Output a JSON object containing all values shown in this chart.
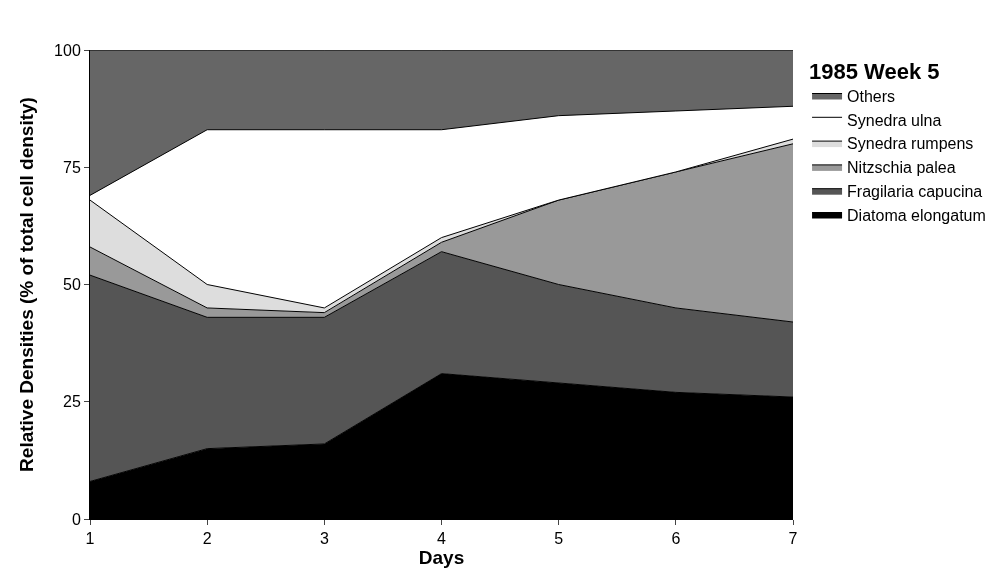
{
  "chart_data": {
    "type": "area",
    "stacked": true,
    "xlabel": "Days",
    "ylabel": "Relative Densities (% of total cell density)",
    "legend_title": "1985 Week 5",
    "x": [
      1,
      2,
      3,
      4,
      5,
      6,
      7
    ],
    "series": [
      {
        "name": "Diatoma elongatum",
        "color": "#000000",
        "values": [
          8,
          15,
          16,
          31,
          29,
          27,
          26
        ]
      },
      {
        "name": "Fragilaria capucina",
        "color": "#555555",
        "values": [
          44,
          28,
          27,
          26,
          21,
          18,
          16
        ]
      },
      {
        "name": "Nitzschia palea",
        "color": "#999999",
        "values": [
          6,
          2,
          1,
          2,
          18,
          29,
          38
        ]
      },
      {
        "name": "Synedra rumpens",
        "color": "#dddddd",
        "values": [
          10,
          5,
          1,
          1,
          0,
          0,
          1
        ]
      },
      {
        "name": "Synedra ulna",
        "color": "#ffffff",
        "values": [
          1,
          33,
          38,
          23,
          18,
          13,
          7
        ]
      },
      {
        "name": "Others",
        "color": "#666666",
        "values": [
          31,
          17,
          17,
          17,
          14,
          13,
          12
        ]
      }
    ],
    "xlim": [
      1,
      7
    ],
    "xticks": [
      1,
      2,
      3,
      4,
      5,
      6,
      7
    ],
    "ylim": [
      0,
      100
    ],
    "yticks": [
      0,
      25,
      50,
      75,
      100
    ],
    "legend": "right"
  }
}
